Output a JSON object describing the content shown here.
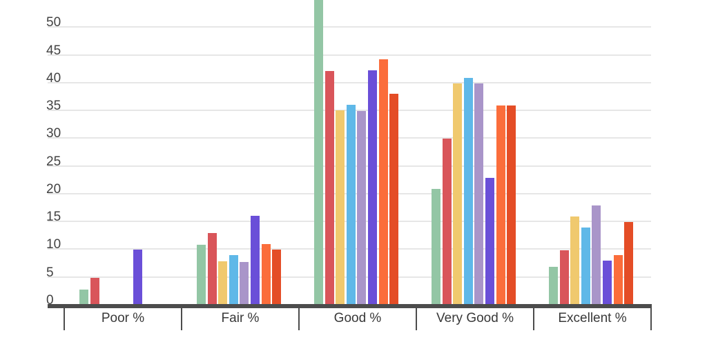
{
  "chart_data": {
    "type": "bar",
    "title": "",
    "categories": [
      "Poor %",
      "Fair %",
      "Good %",
      "Very Good %",
      "Excellent %"
    ],
    "series": [
      {
        "name": "green",
        "color": "#93C6A5",
        "values": [
          2.7,
          10.8,
          58.5,
          20.9,
          6.8
        ]
      },
      {
        "name": "red",
        "color": "#D9555A",
        "values": [
          4.8,
          12.9,
          42.1,
          29.9,
          9.8
        ]
      },
      {
        "name": "yellow",
        "color": "#F0C96E",
        "values": [
          0,
          7.8,
          35.0,
          39.9,
          15.9
        ]
      },
      {
        "name": "light-blue",
        "color": "#5FB8E8",
        "values": [
          0,
          8.9,
          36.0,
          40.9,
          13.9
        ]
      },
      {
        "name": "lavender",
        "color": "#A995C9",
        "values": [
          0,
          7.7,
          34.9,
          39.8,
          17.9
        ]
      },
      {
        "name": "purple",
        "color": "#6A4FD8",
        "values": [
          9.9,
          16.0,
          42.2,
          22.9,
          7.9
        ]
      },
      {
        "name": "orange",
        "color": "#FB6D3B",
        "values": [
          0,
          10.9,
          44.2,
          35.9,
          8.9
        ]
      },
      {
        "name": "dark-orange",
        "color": "#E44D26",
        "values": [
          0,
          9.9,
          38.0,
          35.9,
          14.9
        ]
      }
    ],
    "y_axis": {
      "ticks": [
        0,
        5,
        10,
        15,
        20,
        25,
        30,
        35,
        40,
        45,
        50
      ],
      "visible_range": [
        0,
        54.8
      ]
    },
    "grid": true,
    "legend_position": "none",
    "note": "tallest bar (green, Good %) is clipped by the top edge of the image; zero-value bars are not drawn"
  }
}
